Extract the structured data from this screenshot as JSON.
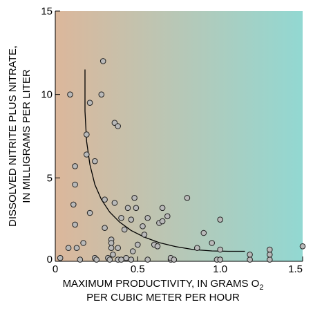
{
  "chart_data": {
    "type": "scatter",
    "xlabel_line1": "MAXIMUM PRODUCTIVITY, IN GRAMS O",
    "xlabel_sub": "2",
    "xlabel_line2": "PER CUBIC METER PER HOUR",
    "ylabel_line1": "DISSOLVED NITRITE PLUS NITRATE,",
    "ylabel_line2": "IN MILLIGRAMS PER LITER",
    "xlim": [
      0,
      1.5
    ],
    "ylim": [
      0,
      15
    ],
    "x_ticks": [
      0,
      0.5,
      1.0,
      1.5
    ],
    "x_tick_labels": [
      "0",
      "0.5",
      "1.0",
      "1.5"
    ],
    "y_ticks": [
      0,
      5,
      10,
      15
    ],
    "y_tick_labels": [
      "0",
      "5",
      "10",
      "15"
    ],
    "grid": false,
    "legend": "none",
    "background_gradient": [
      "#dcb79b",
      "#92d8d2"
    ],
    "marker_color": "#b9b9b9",
    "points": [
      [
        0.03,
        0.2
      ],
      [
        0.08,
        0.8
      ],
      [
        0.09,
        10.0
      ],
      [
        0.11,
        3.4
      ],
      [
        0.12,
        5.7
      ],
      [
        0.12,
        4.6
      ],
      [
        0.12,
        2.2
      ],
      [
        0.13,
        0.8
      ],
      [
        0.15,
        0.1
      ],
      [
        0.17,
        1.1
      ],
      [
        0.19,
        7.6
      ],
      [
        0.19,
        6.4
      ],
      [
        0.21,
        9.5
      ],
      [
        0.21,
        2.9
      ],
      [
        0.24,
        6.0
      ],
      [
        0.24,
        0.2
      ],
      [
        0.25,
        0.1
      ],
      [
        0.28,
        10.0
      ],
      [
        0.29,
        12.0
      ],
      [
        0.3,
        3.7
      ],
      [
        0.3,
        2.0
      ],
      [
        0.32,
        0.2
      ],
      [
        0.33,
        0.1
      ],
      [
        0.34,
        1.3
      ],
      [
        0.34,
        1.1
      ],
      [
        0.34,
        0.8
      ],
      [
        0.35,
        0.4
      ],
      [
        0.36,
        3.5
      ],
      [
        0.36,
        8.3
      ],
      [
        0.38,
        8.1
      ],
      [
        0.38,
        0.8
      ],
      [
        0.38,
        0.1
      ],
      [
        0.4,
        0.1
      ],
      [
        0.4,
        2.6
      ],
      [
        0.42,
        1.9
      ],
      [
        0.43,
        0.2
      ],
      [
        0.44,
        3.2
      ],
      [
        0.46,
        0.1
      ],
      [
        0.46,
        2.5
      ],
      [
        0.47,
        0.6
      ],
      [
        0.48,
        3.8
      ],
      [
        0.49,
        3.2
      ],
      [
        0.5,
        1.0
      ],
      [
        0.53,
        2.1
      ],
      [
        0.54,
        1.6
      ],
      [
        0.56,
        0.1
      ],
      [
        0.56,
        2.6
      ],
      [
        0.6,
        1.0
      ],
      [
        0.62,
        0.9
      ],
      [
        0.63,
        2.3
      ],
      [
        0.65,
        2.4
      ],
      [
        0.65,
        3.2
      ],
      [
        0.68,
        2.7
      ],
      [
        0.7,
        0.1
      ],
      [
        0.7,
        0.2
      ],
      [
        0.72,
        0.1
      ],
      [
        0.8,
        3.8
      ],
      [
        0.86,
        0.8
      ],
      [
        0.9,
        1.7
      ],
      [
        0.95,
        1.1
      ],
      [
        0.98,
        0.1
      ],
      [
        1.0,
        0.7
      ],
      [
        1.0,
        2.5
      ],
      [
        1.0,
        0.1
      ],
      [
        1.18,
        0.1
      ],
      [
        1.18,
        0.4
      ],
      [
        1.3,
        0.1
      ],
      [
        1.3,
        0.4
      ],
      [
        1.3,
        0.7
      ],
      [
        1.5,
        0.9
      ]
    ],
    "fitted_curve": [
      [
        0.18,
        11.5
      ],
      [
        0.18,
        9.0
      ],
      [
        0.19,
        7.2
      ],
      [
        0.21,
        5.8
      ],
      [
        0.24,
        4.6
      ],
      [
        0.28,
        3.7
      ],
      [
        0.33,
        2.95
      ],
      [
        0.39,
        2.35
      ],
      [
        0.46,
        1.85
      ],
      [
        0.54,
        1.45
      ],
      [
        0.63,
        1.12
      ],
      [
        0.73,
        0.88
      ],
      [
        0.84,
        0.7
      ],
      [
        0.95,
        0.62
      ],
      [
        1.05,
        0.6
      ],
      [
        1.15,
        0.6
      ]
    ]
  }
}
